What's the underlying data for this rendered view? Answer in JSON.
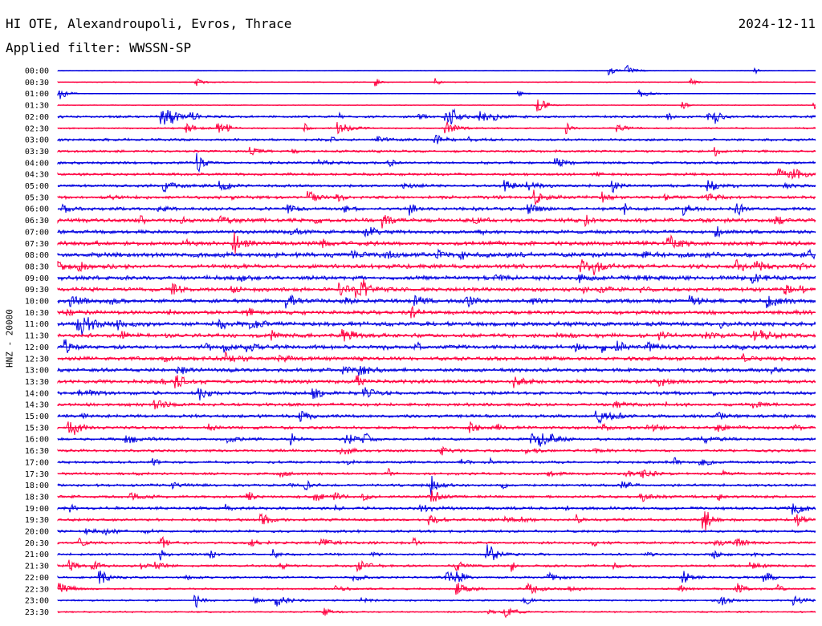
{
  "header": {
    "station": "HI OTE, Alexandroupoli, Evros, Thrace",
    "date": "2024-12-11",
    "filter": "Applied filter: WWSSN-SP",
    "channel": "HNZ - 20000"
  },
  "colors": {
    "odd": "#0000e0",
    "even": "#ff0040",
    "text": "#000000"
  },
  "chart_data": {
    "type": "line",
    "title": "HI OTE, Alexandroupoli, Evros, Thrace",
    "ylabel": "HNZ - 20000",
    "xlabel": "",
    "grid": false,
    "legend": "none",
    "lines": [
      {
        "label": "00:00",
        "color": "blue"
      },
      {
        "label": "00:30",
        "color": "red"
      },
      {
        "label": "01:00",
        "color": "blue"
      },
      {
        "label": "01:30",
        "color": "red"
      },
      {
        "label": "02:00",
        "color": "blue"
      },
      {
        "label": "02:30",
        "color": "red"
      },
      {
        "label": "03:00",
        "color": "blue"
      },
      {
        "label": "03:30",
        "color": "red"
      },
      {
        "label": "04:00",
        "color": "blue"
      },
      {
        "label": "04:30",
        "color": "red"
      },
      {
        "label": "05:00",
        "color": "blue"
      },
      {
        "label": "05:30",
        "color": "red"
      },
      {
        "label": "06:00",
        "color": "blue"
      },
      {
        "label": "06:30",
        "color": "red"
      },
      {
        "label": "07:00",
        "color": "blue"
      },
      {
        "label": "07:30",
        "color": "red"
      },
      {
        "label": "08:00",
        "color": "blue"
      },
      {
        "label": "08:30",
        "color": "red"
      },
      {
        "label": "09:00",
        "color": "blue"
      },
      {
        "label": "09:30",
        "color": "red"
      },
      {
        "label": "10:00",
        "color": "blue"
      },
      {
        "label": "10:30",
        "color": "red"
      },
      {
        "label": "11:00",
        "color": "blue"
      },
      {
        "label": "11:30",
        "color": "red"
      },
      {
        "label": "12:00",
        "color": "blue"
      },
      {
        "label": "12:30",
        "color": "red"
      },
      {
        "label": "13:00",
        "color": "blue"
      },
      {
        "label": "13:30",
        "color": "red"
      },
      {
        "label": "14:00",
        "color": "blue"
      },
      {
        "label": "14:30",
        "color": "red"
      },
      {
        "label": "15:00",
        "color": "blue"
      },
      {
        "label": "15:30",
        "color": "red"
      },
      {
        "label": "16:00",
        "color": "blue"
      },
      {
        "label": "16:30",
        "color": "red"
      },
      {
        "label": "17:00",
        "color": "blue"
      },
      {
        "label": "17:30",
        "color": "red"
      },
      {
        "label": "18:00",
        "color": "blue"
      },
      {
        "label": "18:30",
        "color": "red"
      },
      {
        "label": "19:00",
        "color": "blue"
      },
      {
        "label": "19:30",
        "color": "red"
      },
      {
        "label": "20:00",
        "color": "blue"
      },
      {
        "label": "20:30",
        "color": "red"
      },
      {
        "label": "21:00",
        "color": "blue"
      },
      {
        "label": "21:30",
        "color": "red"
      },
      {
        "label": "22:00",
        "color": "blue"
      },
      {
        "label": "22:30",
        "color": "red"
      },
      {
        "label": "23:00",
        "color": "blue"
      },
      {
        "label": "23:30",
        "color": "red"
      }
    ]
  }
}
